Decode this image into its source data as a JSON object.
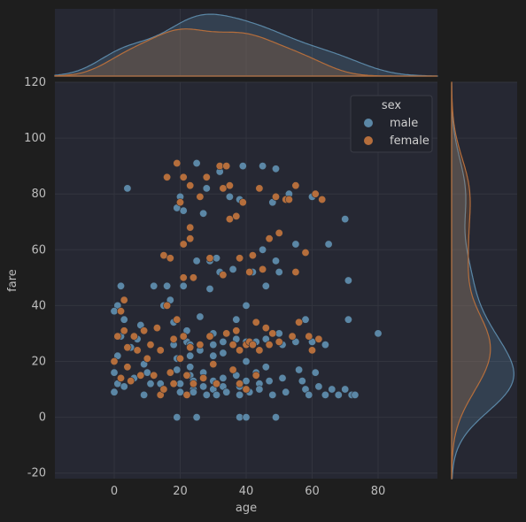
{
  "chart_data": {
    "type": "scatter",
    "title": "",
    "xlabel": "age",
    "ylabel": "fare",
    "xlim": [
      -18,
      98
    ],
    "ylim": [
      -22,
      120
    ],
    "xticks": [
      0,
      20,
      40,
      60,
      80
    ],
    "yticks": [
      -20,
      0,
      20,
      40,
      60,
      80,
      100,
      120
    ],
    "grid": true,
    "legend": {
      "title": "sex",
      "position": "top-right",
      "entries": [
        "male",
        "female"
      ]
    },
    "colors": {
      "male": "#5b87a6",
      "female": "#b56e3c",
      "background": "#1e1e1e",
      "panel": "#262833",
      "grid": "#33353f",
      "legend_bg": "#22242d"
    },
    "marginals": {
      "x": "kde",
      "y": "kde"
    },
    "series": [
      {
        "name": "male",
        "points": [
          [
            2,
            47
          ],
          [
            1,
            40
          ],
          [
            0,
            38
          ],
          [
            0,
            20
          ],
          [
            0,
            16
          ],
          [
            1,
            12
          ],
          [
            0,
            9
          ],
          [
            2,
            29
          ],
          [
            1,
            22
          ],
          [
            4,
            82
          ],
          [
            3,
            35
          ],
          [
            5,
            25
          ],
          [
            4,
            18
          ],
          [
            6,
            14
          ],
          [
            3,
            11
          ],
          [
            8,
            33
          ],
          [
            7,
            28
          ],
          [
            9,
            19
          ],
          [
            10,
            16
          ],
          [
            11,
            12
          ],
          [
            9,
            8
          ],
          [
            14,
            12
          ],
          [
            12,
            47
          ],
          [
            15,
            40
          ],
          [
            16,
            47
          ],
          [
            17,
            42
          ],
          [
            18,
            34
          ],
          [
            18,
            26
          ],
          [
            19,
            21
          ],
          [
            19,
            17
          ],
          [
            20,
            12
          ],
          [
            20,
            9
          ],
          [
            19,
            0
          ],
          [
            19,
            75
          ],
          [
            20,
            79
          ],
          [
            21,
            74
          ],
          [
            21,
            47
          ],
          [
            22,
            31
          ],
          [
            22,
            27
          ],
          [
            23,
            26
          ],
          [
            23,
            22
          ],
          [
            23,
            18
          ],
          [
            23,
            15
          ],
          [
            24,
            13
          ],
          [
            24,
            10
          ],
          [
            24,
            9
          ],
          [
            25,
            91
          ],
          [
            25,
            56
          ],
          [
            26,
            36
          ],
          [
            26,
            24
          ],
          [
            27,
            16
          ],
          [
            27,
            11
          ],
          [
            28,
            8
          ],
          [
            25,
            0
          ],
          [
            27,
            73
          ],
          [
            28,
            82
          ],
          [
            29,
            56
          ],
          [
            29,
            46
          ],
          [
            30,
            30
          ],
          [
            30,
            26
          ],
          [
            30,
            22
          ],
          [
            30,
            13
          ],
          [
            30,
            10
          ],
          [
            31,
            8
          ],
          [
            32,
            88
          ],
          [
            31,
            57
          ],
          [
            32,
            52
          ],
          [
            33,
            27
          ],
          [
            33,
            23
          ],
          [
            33,
            14
          ],
          [
            33,
            11
          ],
          [
            34,
            9
          ],
          [
            35,
            79
          ],
          [
            36,
            53
          ],
          [
            37,
            35
          ],
          [
            37,
            28
          ],
          [
            37,
            15
          ],
          [
            38,
            11
          ],
          [
            38,
            8
          ],
          [
            38,
            0
          ],
          [
            39,
            90
          ],
          [
            38,
            78
          ],
          [
            40,
            40
          ],
          [
            40,
            27
          ],
          [
            40,
            20
          ],
          [
            40,
            13
          ],
          [
            41,
            9
          ],
          [
            40,
            0
          ],
          [
            42,
            52
          ],
          [
            43,
            27
          ],
          [
            43,
            16
          ],
          [
            44,
            12
          ],
          [
            44,
            10
          ],
          [
            45,
            90
          ],
          [
            45,
            60
          ],
          [
            46,
            47
          ],
          [
            46,
            28
          ],
          [
            46,
            18
          ],
          [
            47,
            13
          ],
          [
            48,
            8
          ],
          [
            49,
            89
          ],
          [
            48,
            77
          ],
          [
            49,
            56
          ],
          [
            50,
            52
          ],
          [
            50,
            30
          ],
          [
            51,
            26
          ],
          [
            51,
            14
          ],
          [
            52,
            9
          ],
          [
            49,
            0
          ],
          [
            53,
            80
          ],
          [
            55,
            62
          ],
          [
            55,
            27
          ],
          [
            56,
            17
          ],
          [
            57,
            13
          ],
          [
            58,
            10
          ],
          [
            59,
            8
          ],
          [
            58,
            35
          ],
          [
            60,
            79
          ],
          [
            60,
            27
          ],
          [
            61,
            16
          ],
          [
            62,
            11
          ],
          [
            64,
            26
          ],
          [
            64,
            8
          ],
          [
            65,
            62
          ],
          [
            66,
            10
          ],
          [
            68,
            8
          ],
          [
            70,
            71
          ],
          [
            70,
            10
          ],
          [
            71,
            49
          ],
          [
            71,
            35
          ],
          [
            72,
            8
          ],
          [
            73,
            8
          ],
          [
            80,
            30
          ]
        ]
      },
      {
        "name": "female",
        "points": [
          [
            0,
            20
          ],
          [
            1,
            29
          ],
          [
            2,
            38
          ],
          [
            2,
            14
          ],
          [
            3,
            42
          ],
          [
            3,
            31
          ],
          [
            4,
            25
          ],
          [
            4,
            18
          ],
          [
            5,
            13
          ],
          [
            6,
            29
          ],
          [
            7,
            24
          ],
          [
            8,
            15
          ],
          [
            9,
            31
          ],
          [
            10,
            21
          ],
          [
            11,
            26
          ],
          [
            12,
            15
          ],
          [
            13,
            32
          ],
          [
            14,
            24
          ],
          [
            14,
            8
          ],
          [
            15,
            10
          ],
          [
            15,
            58
          ],
          [
            16,
            86
          ],
          [
            16,
            40
          ],
          [
            17,
            57
          ],
          [
            17,
            16
          ],
          [
            18,
            28
          ],
          [
            18,
            12
          ],
          [
            19,
            91
          ],
          [
            19,
            35
          ],
          [
            20,
            77
          ],
          [
            20,
            21
          ],
          [
            21,
            86
          ],
          [
            21,
            62
          ],
          [
            21,
            50
          ],
          [
            21,
            29
          ],
          [
            22,
            15
          ],
          [
            22,
            8
          ],
          [
            23,
            83
          ],
          [
            23,
            68
          ],
          [
            23,
            64
          ],
          [
            23,
            25
          ],
          [
            24,
            50
          ],
          [
            24,
            12
          ],
          [
            26,
            79
          ],
          [
            26,
            26
          ],
          [
            27,
            14
          ],
          [
            28,
            86
          ],
          [
            29,
            57
          ],
          [
            29,
            29
          ],
          [
            30,
            19
          ],
          [
            31,
            12
          ],
          [
            32,
            90
          ],
          [
            33,
            82
          ],
          [
            33,
            51
          ],
          [
            34,
            90
          ],
          [
            34,
            30
          ],
          [
            35,
            83
          ],
          [
            35,
            71
          ],
          [
            36,
            26
          ],
          [
            36,
            17
          ],
          [
            37,
            72
          ],
          [
            37,
            31
          ],
          [
            38,
            57
          ],
          [
            38,
            24
          ],
          [
            38,
            12
          ],
          [
            39,
            77
          ],
          [
            40,
            26
          ],
          [
            40,
            10
          ],
          [
            41,
            52
          ],
          [
            41,
            27
          ],
          [
            42,
            58
          ],
          [
            42,
            26
          ],
          [
            43,
            34
          ],
          [
            43,
            15
          ],
          [
            44,
            82
          ],
          [
            44,
            24
          ],
          [
            45,
            53
          ],
          [
            46,
            32
          ],
          [
            47,
            64
          ],
          [
            47,
            26
          ],
          [
            48,
            30
          ],
          [
            49,
            79
          ],
          [
            50,
            66
          ],
          [
            50,
            27
          ],
          [
            52,
            78
          ],
          [
            53,
            78
          ],
          [
            54,
            29
          ],
          [
            55,
            83
          ],
          [
            55,
            52
          ],
          [
            56,
            34
          ],
          [
            58,
            59
          ],
          [
            59,
            29
          ],
          [
            60,
            24
          ],
          [
            61,
            80
          ],
          [
            62,
            28
          ],
          [
            63,
            78
          ]
        ]
      }
    ]
  }
}
